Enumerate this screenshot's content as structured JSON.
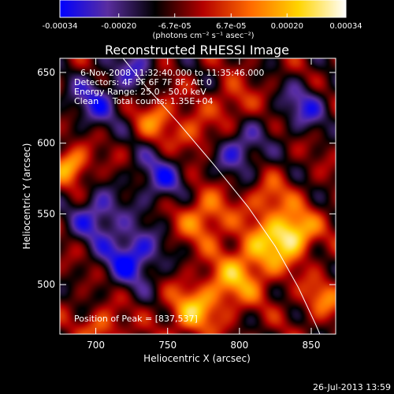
{
  "colorbar": {
    "tick_labels": [
      "-0.00034",
      "-0.00020",
      "-6.7e-05",
      "6.7e-05",
      "0.00020",
      "0.00034"
    ],
    "tick_values": [
      -0.00034,
      -0.0002,
      -6.7e-05,
      6.7e-05,
      0.0002,
      0.00034
    ],
    "vmin": -0.00034,
    "vmax": 0.00034,
    "unit_label": "(photons cm⁻² s⁻¹ asec⁻²)",
    "stops": [
      "#0000ff",
      "#5a2ea0",
      "#000000",
      "#b40000",
      "#ff6a00",
      "#ffd400",
      "#ffffff"
    ]
  },
  "chart_data": {
    "type": "heatmap",
    "title": "Reconstructed RHESSI Image",
    "xlabel": "Heliocentric X (arcsec)",
    "ylabel": "Heliocentric Y (arcsec)",
    "xlim": [
      675,
      867
    ],
    "ylim": [
      465,
      660
    ],
    "x_ticks": [
      700,
      750,
      800,
      850
    ],
    "y_ticks": [
      500,
      550,
      600,
      650
    ],
    "x_tick_labels": [
      "700",
      "750",
      "800",
      "850"
    ],
    "y_tick_labels": [
      "500",
      "550",
      "600",
      "650"
    ],
    "limb_curve": [
      [
        719,
        660
      ],
      [
        735,
        640
      ],
      [
        757,
        615
      ],
      [
        782,
        585
      ],
      [
        806,
        555
      ],
      [
        825,
        527
      ],
      [
        841,
        498
      ],
      [
        853,
        472
      ],
      [
        856,
        465
      ]
    ],
    "blobs": [
      {
        "x": 837,
        "y": 537,
        "sigma": 11,
        "amp": 1.0
      },
      {
        "x": 815,
        "y": 522,
        "sigma": 14,
        "amp": 0.65
      },
      {
        "x": 793,
        "y": 500,
        "sigma": 13,
        "amp": 0.6
      },
      {
        "x": 767,
        "y": 481,
        "sigma": 12,
        "amp": 0.7
      },
      {
        "x": 775,
        "y": 548,
        "sigma": 13,
        "amp": 0.6
      },
      {
        "x": 820,
        "y": 560,
        "sigma": 10,
        "amp": 0.5
      },
      {
        "x": 768,
        "y": 605,
        "sigma": 10,
        "amp": 0.45
      },
      {
        "x": 683,
        "y": 585,
        "sigma": 9,
        "amp": 0.75
      },
      {
        "x": 743,
        "y": 618,
        "sigma": 10,
        "amp": 0.55
      },
      {
        "x": 858,
        "y": 490,
        "sigma": 10,
        "amp": 0.5
      },
      {
        "x": 705,
        "y": 470,
        "sigma": 9,
        "amp": 0.5
      },
      {
        "x": 795,
        "y": 628,
        "sigma": 10,
        "amp": 0.4
      },
      {
        "x": 725,
        "y": 520,
        "sigma": 14,
        "amp": -0.8
      },
      {
        "x": 700,
        "y": 548,
        "sigma": 12,
        "amp": -0.65
      },
      {
        "x": 745,
        "y": 575,
        "sigma": 14,
        "amp": -0.55
      },
      {
        "x": 700,
        "y": 630,
        "sigma": 14,
        "amp": -0.55
      },
      {
        "x": 800,
        "y": 595,
        "sigma": 12,
        "amp": -0.6
      },
      {
        "x": 845,
        "y": 625,
        "sigma": 12,
        "amp": -0.55
      },
      {
        "x": 728,
        "y": 655,
        "sigma": 10,
        "amp": -0.5
      }
    ]
  },
  "annotations": {
    "time_range": "6-Nov-2008 11:32:40.000 to 11:35:46.000",
    "detectors": "Detectors: 4F 5F 6F 7F 8F, Att 0",
    "energy_range": "Energy Range: 25.0 - 50.0 keV",
    "clean_counts": "Clean     Total counts: 1.35E+04",
    "peak_position": "Position of Peak = [837,537]"
  },
  "footer": {
    "timestamp": "26-Jul-2013 13:59"
  }
}
